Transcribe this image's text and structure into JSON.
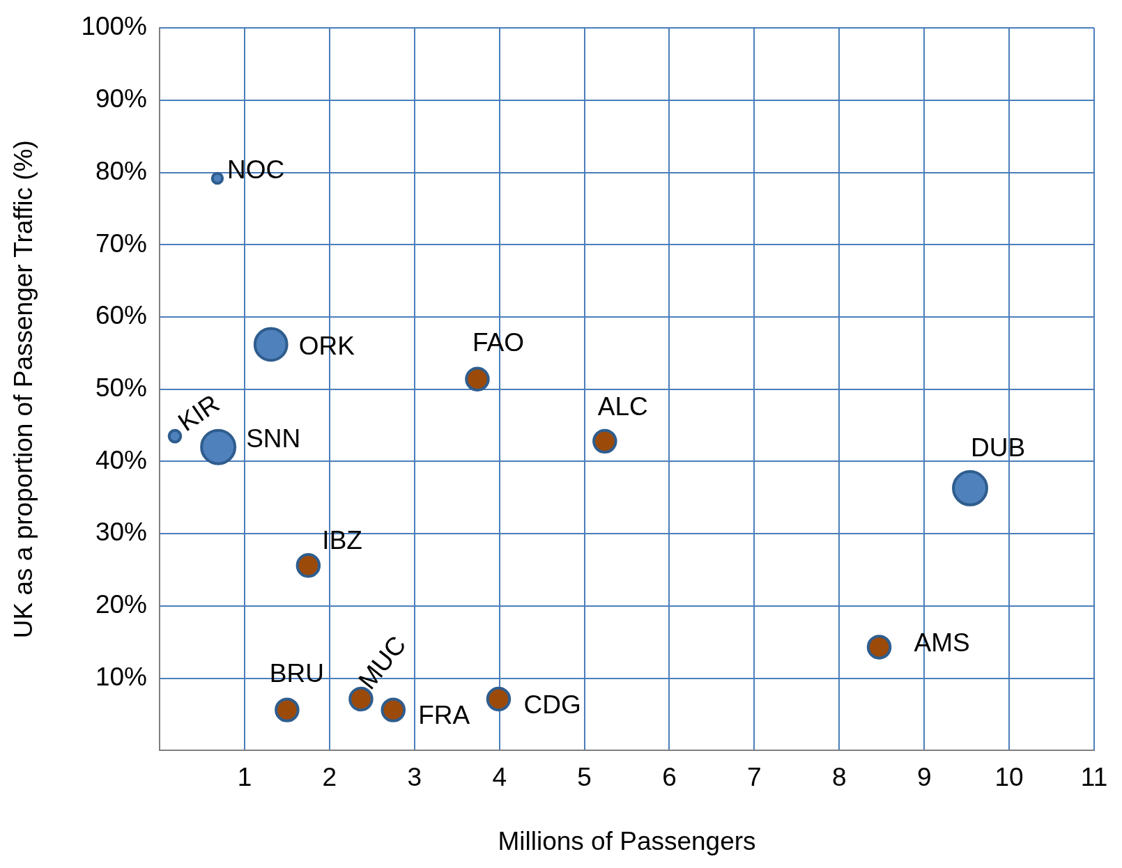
{
  "chart_data": {
    "type": "bubble",
    "xlabel": "Millions of Passengers",
    "ylabel": "UK as a proportion of Passenger Traffic (%)",
    "xlim": [
      0,
      11
    ],
    "xticks": [
      {
        "value": 0,
        "label": null
      },
      1,
      2,
      3,
      4,
      5,
      6,
      7,
      8,
      9,
      10,
      11
    ],
    "ylim": [
      0,
      100
    ],
    "yticks": [
      {
        "value": 0,
        "label": null
      },
      {
        "value": 10,
        "label": "10%"
      },
      {
        "value": 20,
        "label": "20%"
      },
      {
        "value": 30,
        "label": "30%"
      },
      {
        "value": 40,
        "label": "40%"
      },
      {
        "value": 50,
        "label": "50%"
      },
      {
        "value": 60,
        "label": "60%"
      },
      {
        "value": 70,
        "label": "70%"
      },
      {
        "value": 80,
        "label": "80%"
      },
      {
        "value": 90,
        "label": "90%"
      },
      {
        "value": 100,
        "label": "100%"
      }
    ],
    "grid": true,
    "series": [
      {
        "color": "#4f81bd",
        "x": [
          0.68,
          1.31,
          0.18,
          0.69,
          9.54
        ],
        "values": [
          79.2,
          56.2,
          43.5,
          42.0,
          36.3
        ],
        "sizes": [
          0.09,
          0.91,
          0.12,
          1,
          1
        ]
      },
      {
        "color": "#9c4a0a",
        "x": [
          3.74,
          5.24,
          1.75,
          1.5,
          2.37,
          2.75,
          3.99,
          8.47
        ],
        "values": [
          51.4,
          42.8,
          25.6,
          5.6,
          7.1,
          5.6,
          7.1,
          14.3
        ],
        "sizes": [
          0.43,
          0.43,
          0.43,
          0.43,
          0.43,
          0.43,
          0.43,
          0.43
        ]
      }
    ],
    "annotations": [
      {
        "text": "NOC",
        "x": 0.68,
        "y": 79.2
      },
      {
        "text": "ORK",
        "x": 1.31,
        "y": 56.2
      },
      {
        "text": "KIR",
        "x": 0.18,
        "y": 43.5
      },
      {
        "text": "SNN",
        "x": 0.69,
        "y": 42.0
      },
      {
        "text": "DUB",
        "x": 9.54,
        "y": 36.3
      },
      {
        "text": "FAO",
        "x": 3.74,
        "y": 51.4
      },
      {
        "text": "ALC",
        "x": 5.24,
        "y": 42.8
      },
      {
        "text": "IBZ",
        "x": 1.75,
        "y": 25.6
      },
      {
        "text": "BRU",
        "x": 1.5,
        "y": 5.6
      },
      {
        "text": "MUC",
        "x": 2.37,
        "y": 7.1
      },
      {
        "text": "FRA",
        "x": 2.75,
        "y": 5.6
      },
      {
        "text": "CDG",
        "x": 3.99,
        "y": 7.1
      },
      {
        "text": "AMS",
        "x": 8.47,
        "y": 14.3
      }
    ]
  }
}
